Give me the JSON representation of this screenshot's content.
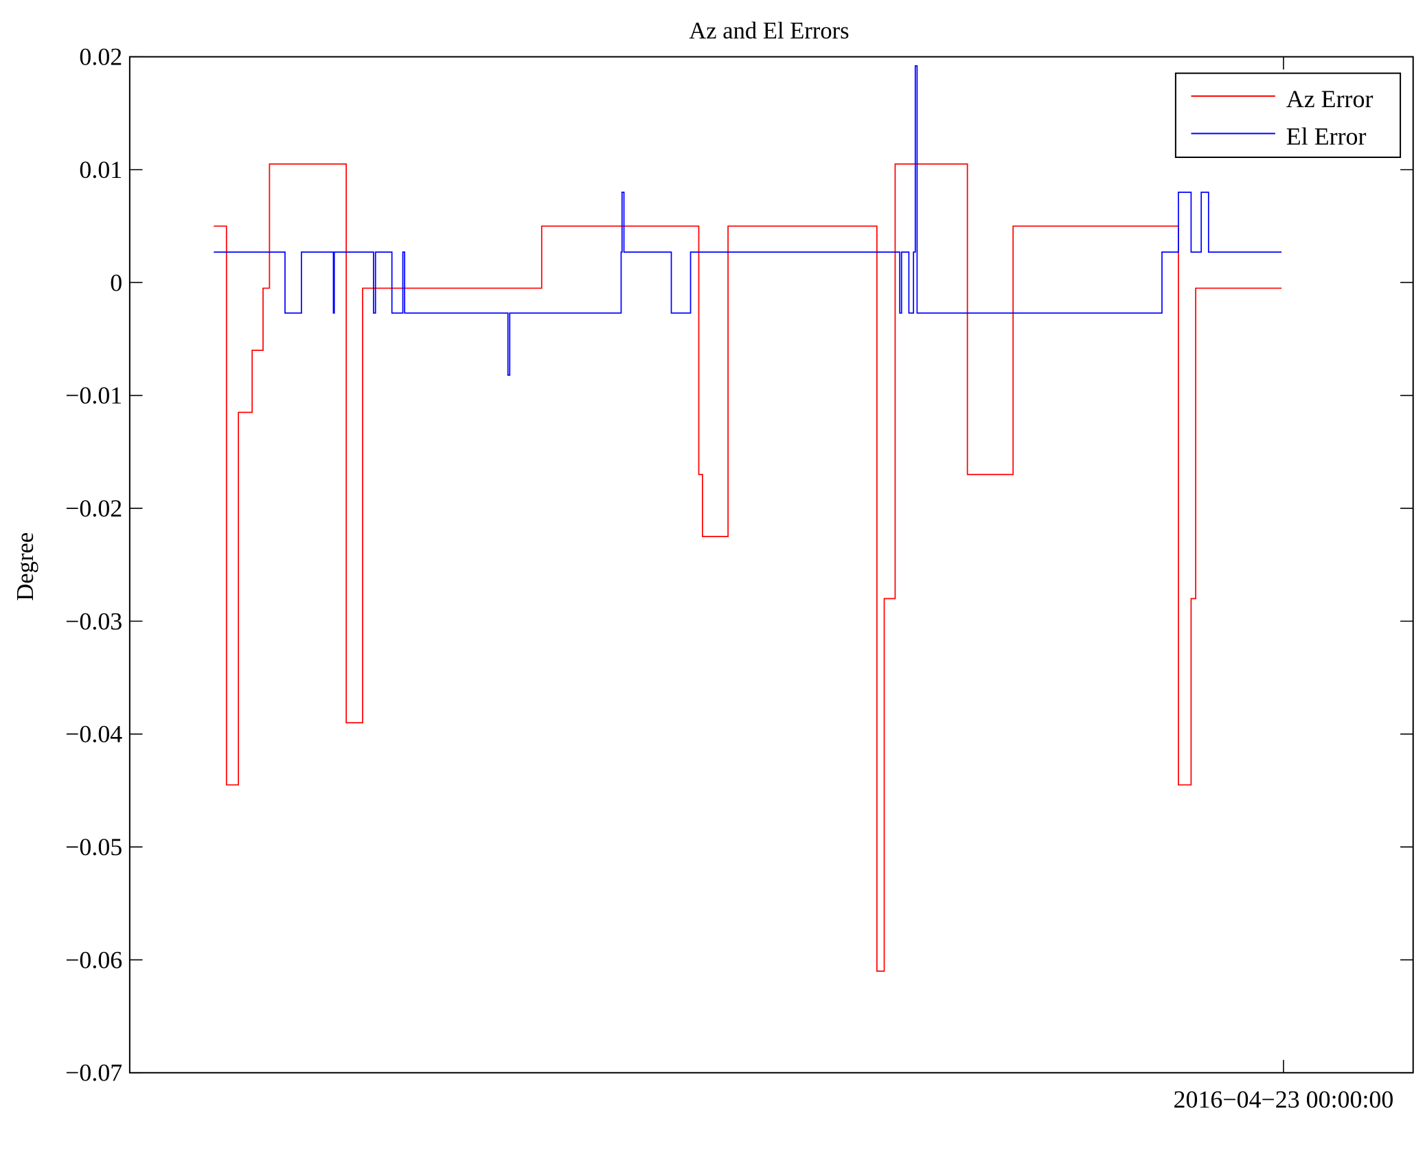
{
  "chart_data": {
    "type": "line",
    "title": "Az and El Errors",
    "xlabel": "",
    "ylabel": "Degree",
    "xlim": [
      0,
      1000
    ],
    "ylim": [
      -0.07,
      0.02
    ],
    "yticks": [
      0.02,
      0.01,
      0,
      -0.01,
      -0.02,
      -0.03,
      -0.04,
      -0.05,
      -0.06,
      -0.07
    ],
    "ytick_labels": [
      "0.02",
      "0.01",
      "0",
      "−0.01",
      "−0.02",
      "−0.03",
      "−0.04",
      "−0.05",
      "−0.06",
      "−0.07"
    ],
    "xticks": [
      899
    ],
    "xtick_labels": [
      "2016−04−23 00:00:00"
    ],
    "grid": false,
    "legend_position": "top-right",
    "step": true,
    "series": [
      {
        "name": "Az Error",
        "color": "#ff0000",
        "end_x": 897.5,
        "points": [
          [
            65.5,
            0.005
          ],
          [
            75.4,
            -0.0445
          ],
          [
            84.7,
            -0.0115
          ],
          [
            95.4,
            -0.006
          ],
          [
            103.9,
            -0.0005
          ],
          [
            108.9,
            0.0105
          ],
          [
            168.7,
            -0.039
          ],
          [
            181.5,
            -0.0005
          ],
          [
            321,
            0.005
          ],
          [
            443.4,
            -0.017
          ],
          [
            446.3,
            -0.0225
          ],
          [
            466.2,
            0.005
          ],
          [
            582.2,
            -0.061
          ],
          [
            587.9,
            -0.028
          ],
          [
            596.4,
            0.0105
          ],
          [
            652.7,
            -0.017
          ],
          [
            688.3,
            0.005
          ],
          [
            817.1,
            -0.0445
          ],
          [
            827,
            -0.028
          ],
          [
            830.6,
            -0.0005
          ]
        ]
      },
      {
        "name": "El Error",
        "color": "#0000ff",
        "end_x": 897.5,
        "points": [
          [
            65.5,
            0.0027
          ],
          [
            121,
            -0.0027
          ],
          [
            133.8,
            0.0027
          ],
          [
            158.7,
            -0.0027
          ],
          [
            159.4,
            0.0027
          ],
          [
            190,
            -0.0027
          ],
          [
            191.5,
            0.0027
          ],
          [
            204.3,
            -0.0027
          ],
          [
            212.8,
            0.0027
          ],
          [
            214.2,
            -0.0027
          ],
          [
            294.7,
            -0.0082
          ],
          [
            296.1,
            -0.0027
          ],
          [
            382.9,
            0.0027
          ],
          [
            383.6,
            0.008
          ],
          [
            385.1,
            0.0027
          ],
          [
            422,
            -0.0027
          ],
          [
            437,
            0.0027
          ],
          [
            600,
            -0.0027
          ],
          [
            601.4,
            0.0027
          ],
          [
            607.1,
            -0.0027
          ],
          [
            610.7,
            0.0027
          ],
          [
            612.1,
            0.0192
          ],
          [
            613.5,
            -0.0027
          ],
          [
            804.3,
            0.0027
          ],
          [
            817.1,
            0.008
          ],
          [
            827,
            0.0027
          ],
          [
            834.9,
            0.008
          ],
          [
            840.6,
            0.0027
          ]
        ]
      }
    ]
  }
}
